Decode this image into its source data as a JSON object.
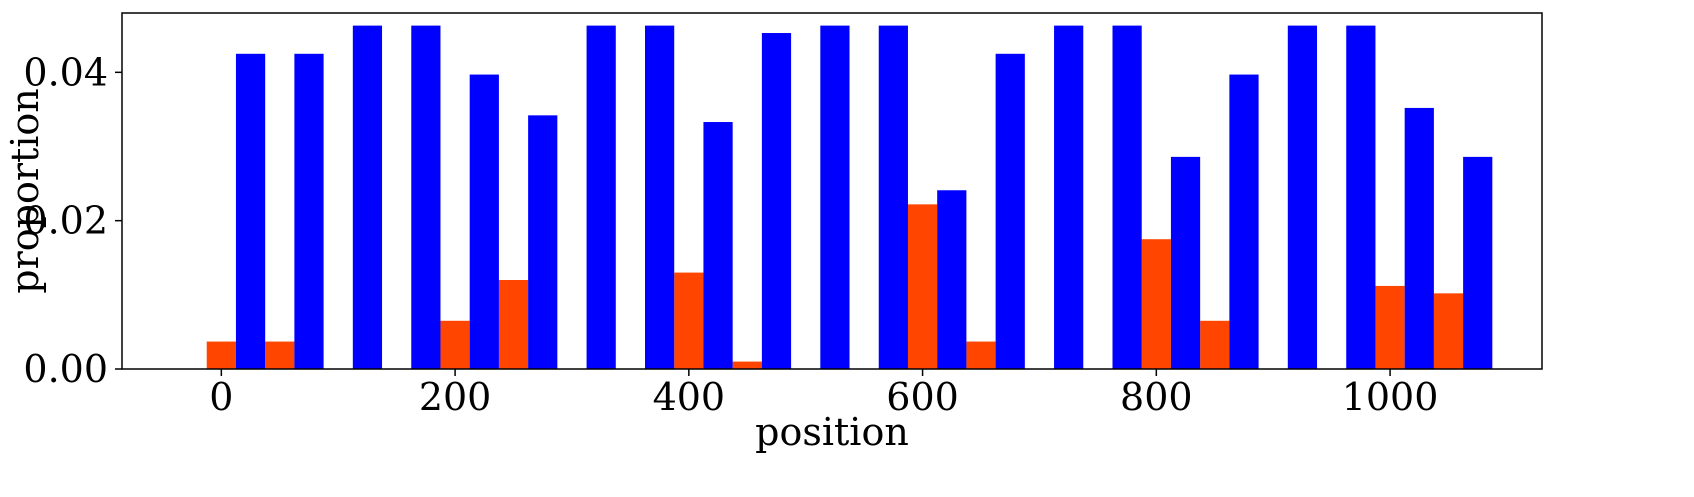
{
  "chart_data": {
    "type": "bar",
    "xlabel": "position",
    "ylabel": "proportion",
    "xlim": [
      -85,
      1130
    ],
    "ylim": [
      0,
      0.048
    ],
    "xticks": [
      0,
      200,
      400,
      600,
      800,
      1000
    ],
    "xtick_labels": [
      "0",
      "200",
      "400",
      "600",
      "800",
      "1000"
    ],
    "yticks": [
      0.0,
      0.02,
      0.04
    ],
    "ytick_labels": [
      "0.00",
      "0.02",
      "0.04"
    ],
    "bar_width": 25,
    "grid": false,
    "series": [
      {
        "color": "#ff4500",
        "x": [
          0,
          50,
          100,
          150,
          200,
          250,
          300,
          350,
          400,
          450,
          500,
          550,
          600,
          650,
          700,
          750,
          800,
          850,
          900,
          950,
          1000,
          1050
        ],
        "values": [
          0.0037,
          0.0037,
          0,
          0,
          0.0065,
          0.012,
          0,
          0,
          0.013,
          0.001,
          0,
          0,
          0.0222,
          0.0037,
          0,
          0,
          0.0175,
          0.0065,
          0,
          0,
          0.0112,
          0.0102
        ]
      },
      {
        "color": "#0000ff",
        "x": [
          25,
          75,
          125,
          175,
          225,
          275,
          325,
          375,
          425,
          475,
          525,
          575,
          625,
          675,
          725,
          775,
          825,
          875,
          925,
          975,
          1025,
          1075
        ],
        "values": [
          0.0425,
          0.0425,
          0.0463,
          0.0463,
          0.0397,
          0.0342,
          0.0463,
          0.0463,
          0.0333,
          0.0453,
          0.0463,
          0.0463,
          0.0241,
          0.0425,
          0.0463,
          0.0463,
          0.0286,
          0.0397,
          0.0463,
          0.0463,
          0.0352,
          0.0286
        ]
      }
    ]
  }
}
